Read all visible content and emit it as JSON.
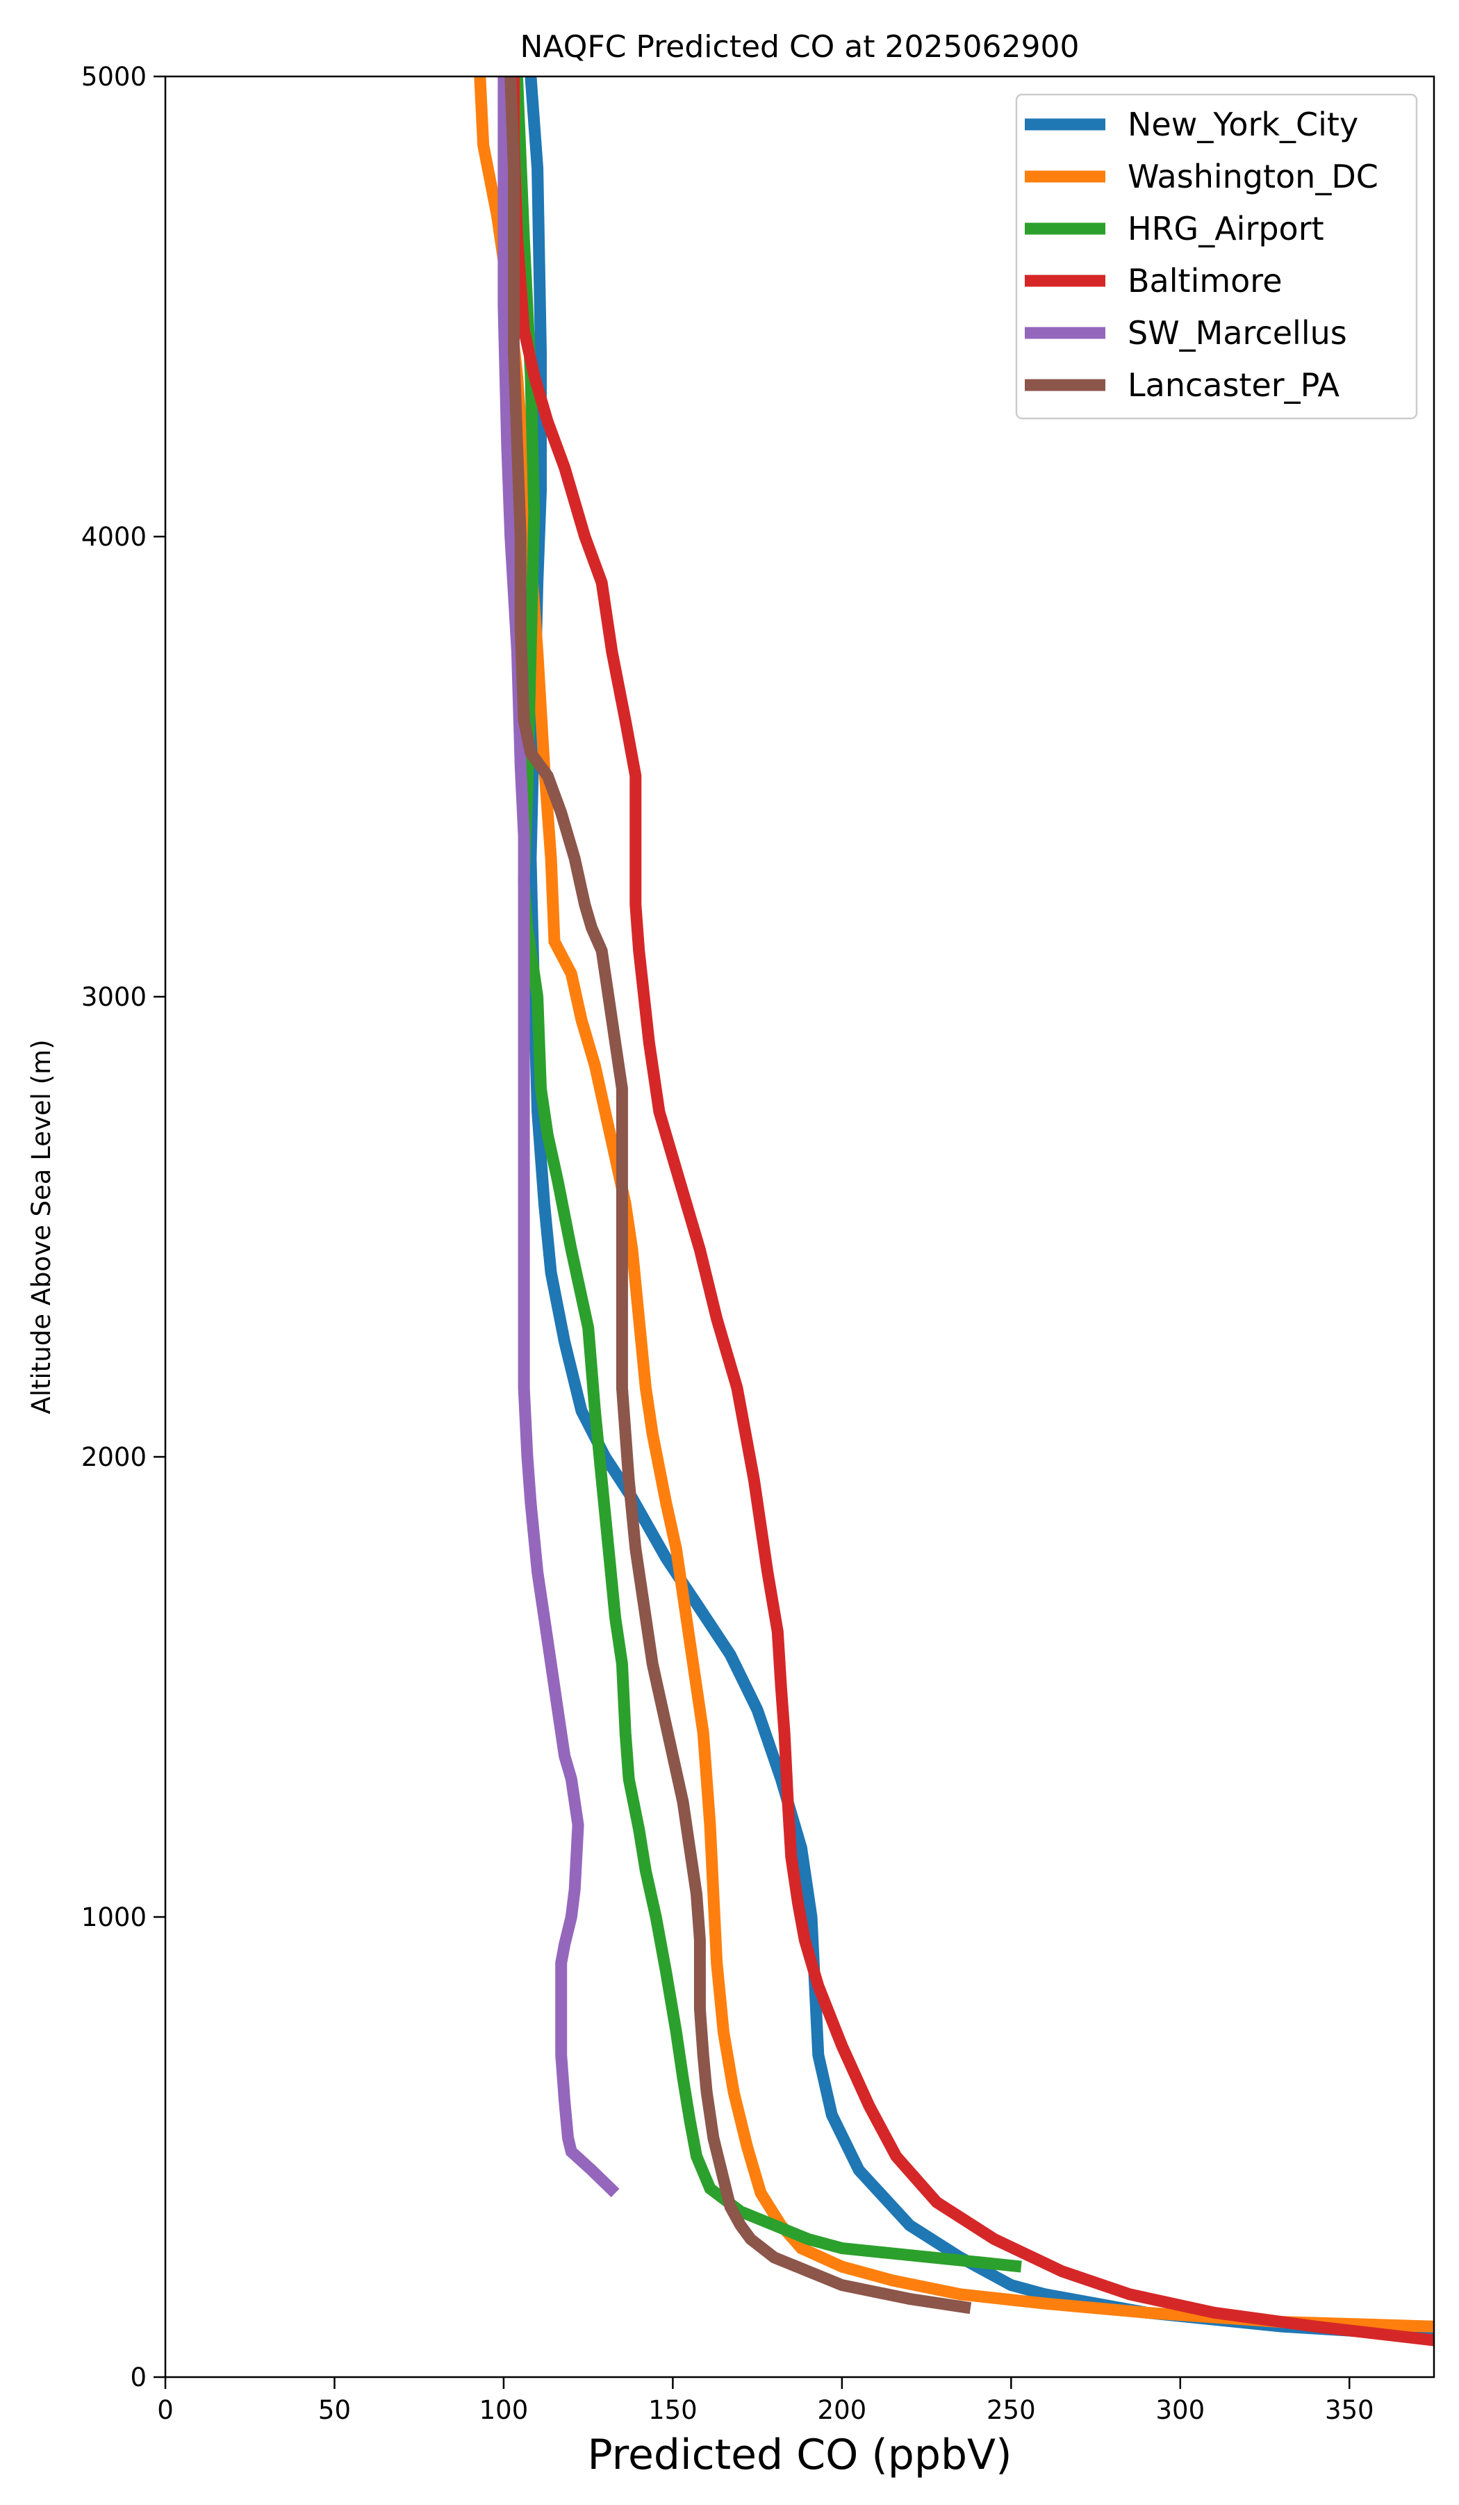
{
  "chart_data": {
    "type": "line",
    "title": "NAQFC Predicted CO at 2025062900",
    "xlabel": "Predicted CO (ppbV)",
    "ylabel": "Altitude Above Sea Level (m)",
    "xlim": [
      0,
      375
    ],
    "ylim": [
      0,
      5000
    ],
    "xticks": [
      0,
      50,
      100,
      150,
      200,
      250,
      300,
      350
    ],
    "yticks": [
      0,
      1000,
      2000,
      3000,
      4000,
      5000
    ],
    "grid": false,
    "legend_position": "top-right",
    "series": [
      {
        "name": "New_York_City",
        "color": "#1f77b4",
        "points": [
          [
            375,
            90
          ],
          [
            330,
            110
          ],
          [
            290,
            140
          ],
          [
            260,
            180
          ],
          [
            250,
            200
          ],
          [
            235,
            260
          ],
          [
            220,
            330
          ],
          [
            205,
            450
          ],
          [
            197,
            570
          ],
          [
            193,
            700
          ],
          [
            192,
            850
          ],
          [
            191,
            1000
          ],
          [
            188,
            1150
          ],
          [
            182,
            1300
          ],
          [
            175,
            1450
          ],
          [
            167,
            1570
          ],
          [
            158,
            1670
          ],
          [
            148,
            1780
          ],
          [
            138,
            1910
          ],
          [
            130,
            2000
          ],
          [
            123,
            2100
          ],
          [
            118,
            2250
          ],
          [
            114,
            2400
          ],
          [
            112,
            2550
          ],
          [
            110,
            2750
          ],
          [
            109,
            3000
          ],
          [
            108,
            3300
          ],
          [
            109,
            3600
          ],
          [
            110,
            3900
          ],
          [
            111,
            4100
          ],
          [
            111,
            4400
          ],
          [
            110,
            4800
          ],
          [
            108,
            5000
          ]
        ]
      },
      {
        "name": "Washington_DC",
        "color": "#ff7f0e",
        "points": [
          [
            375,
            110
          ],
          [
            330,
            120
          ],
          [
            290,
            140
          ],
          [
            260,
            160
          ],
          [
            235,
            180
          ],
          [
            215,
            210
          ],
          [
            200,
            240
          ],
          [
            188,
            280
          ],
          [
            182,
            330
          ],
          [
            176,
            400
          ],
          [
            172,
            500
          ],
          [
            168,
            620
          ],
          [
            165,
            750
          ],
          [
            163,
            900
          ],
          [
            162,
            1050
          ],
          [
            161,
            1200
          ],
          [
            159,
            1400
          ],
          [
            156,
            1550
          ],
          [
            154,
            1650
          ],
          [
            151,
            1800
          ],
          [
            148,
            1900
          ],
          [
            144,
            2050
          ],
          [
            142,
            2150
          ],
          [
            140,
            2300
          ],
          [
            138,
            2450
          ],
          [
            136,
            2550
          ],
          [
            133,
            2650
          ],
          [
            130,
            2750
          ],
          [
            127,
            2850
          ],
          [
            123,
            2950
          ],
          [
            120,
            3050
          ],
          [
            115,
            3120
          ],
          [
            114,
            3300
          ],
          [
            112,
            3500
          ],
          [
            110,
            3750
          ],
          [
            108,
            3950
          ],
          [
            106,
            4150
          ],
          [
            104,
            4350
          ],
          [
            101,
            4550
          ],
          [
            98,
            4700
          ],
          [
            94,
            4850
          ],
          [
            93,
            5000
          ]
        ]
      },
      {
        "name": "HRG_Airport",
        "color": "#2ca02c",
        "points": [
          [
            253,
            240
          ],
          [
            240,
            250
          ],
          [
            220,
            265
          ],
          [
            200,
            280
          ],
          [
            190,
            300
          ],
          [
            180,
            330
          ],
          [
            170,
            360
          ],
          [
            161,
            410
          ],
          [
            157,
            480
          ],
          [
            155,
            560
          ],
          [
            153,
            650
          ],
          [
            151,
            750
          ],
          [
            148,
            880
          ],
          [
            145,
            1000
          ],
          [
            142,
            1100
          ],
          [
            140,
            1190
          ],
          [
            137,
            1300
          ],
          [
            136,
            1400
          ],
          [
            135,
            1550
          ],
          [
            133,
            1650
          ],
          [
            131,
            1800
          ],
          [
            129,
            1950
          ],
          [
            127,
            2100
          ],
          [
            125,
            2280
          ],
          [
            120,
            2450
          ],
          [
            116,
            2600
          ],
          [
            113,
            2700
          ],
          [
            111,
            2800
          ],
          [
            110,
            3000
          ],
          [
            107,
            3150
          ],
          [
            106,
            3250
          ],
          [
            107,
            3450
          ],
          [
            108,
            3750
          ],
          [
            109,
            4050
          ],
          [
            108,
            4350
          ],
          [
            106,
            4650
          ],
          [
            104,
            5000
          ]
        ]
      },
      {
        "name": "Baltimore",
        "color": "#d62728",
        "points": [
          [
            375,
            80
          ],
          [
            340,
            110
          ],
          [
            310,
            140
          ],
          [
            285,
            180
          ],
          [
            265,
            230
          ],
          [
            245,
            300
          ],
          [
            228,
            380
          ],
          [
            216,
            480
          ],
          [
            208,
            590
          ],
          [
            200,
            720
          ],
          [
            193,
            850
          ],
          [
            189,
            950
          ],
          [
            187,
            1030
          ],
          [
            185,
            1130
          ],
          [
            184,
            1250
          ],
          [
            183,
            1400
          ],
          [
            182,
            1500
          ],
          [
            181,
            1620
          ],
          [
            178,
            1750
          ],
          [
            174,
            1950
          ],
          [
            169,
            2150
          ],
          [
            163,
            2300
          ],
          [
            158,
            2450
          ],
          [
            152,
            2600
          ],
          [
            146,
            2750
          ],
          [
            143,
            2900
          ],
          [
            140,
            3100
          ],
          [
            139,
            3200
          ],
          [
            139,
            3350
          ],
          [
            139,
            3480
          ],
          [
            136,
            3600
          ],
          [
            132,
            3750
          ],
          [
            129,
            3900
          ],
          [
            124,
            4000
          ],
          [
            118,
            4150
          ],
          [
            113,
            4250
          ],
          [
            109,
            4350
          ],
          [
            106,
            4450
          ],
          [
            104,
            4650
          ],
          [
            103,
            4850
          ],
          [
            103,
            5000
          ]
        ]
      },
      {
        "name": "SW_Marcellus",
        "color": "#9467bd",
        "points": [
          [
            133,
            400
          ],
          [
            126,
            450
          ],
          [
            120,
            490
          ],
          [
            119,
            520
          ],
          [
            118,
            600
          ],
          [
            117,
            700
          ],
          [
            117,
            800
          ],
          [
            117,
            900
          ],
          [
            118,
            940
          ],
          [
            120,
            1000
          ],
          [
            121,
            1060
          ],
          [
            122,
            1200
          ],
          [
            120,
            1300
          ],
          [
            118,
            1350
          ],
          [
            116,
            1450
          ],
          [
            114,
            1550
          ],
          [
            112,
            1650
          ],
          [
            110,
            1750
          ],
          [
            108,
            1900
          ],
          [
            107,
            2000
          ],
          [
            106,
            2150
          ],
          [
            106,
            2300
          ],
          [
            106,
            2500
          ],
          [
            106,
            2700
          ],
          [
            106,
            2900
          ],
          [
            106,
            3050
          ],
          [
            106,
            3200
          ],
          [
            106,
            3350
          ],
          [
            105,
            3500
          ],
          [
            104,
            3750
          ],
          [
            102,
            4000
          ],
          [
            101,
            4200
          ],
          [
            100,
            4500
          ],
          [
            100,
            4800
          ],
          [
            100,
            5000
          ]
        ]
      },
      {
        "name": "Lancaster_PA",
        "color": "#8c564b",
        "points": [
          [
            238,
            150
          ],
          [
            220,
            170
          ],
          [
            200,
            200
          ],
          [
            190,
            230
          ],
          [
            180,
            260
          ],
          [
            173,
            300
          ],
          [
            170,
            330
          ],
          [
            167,
            370
          ],
          [
            165,
            430
          ],
          [
            162,
            520
          ],
          [
            160,
            620
          ],
          [
            159,
            700
          ],
          [
            158,
            800
          ],
          [
            158,
            950
          ],
          [
            157,
            1050
          ],
          [
            155,
            1150
          ],
          [
            153,
            1250
          ],
          [
            150,
            1350
          ],
          [
            147,
            1450
          ],
          [
            144,
            1550
          ],
          [
            141,
            1700
          ],
          [
            139,
            1800
          ],
          [
            137,
            1950
          ],
          [
            135,
            2150
          ],
          [
            135,
            2300
          ],
          [
            135,
            2450
          ],
          [
            135,
            2650
          ],
          [
            135,
            2800
          ],
          [
            133,
            2900
          ],
          [
            131,
            3000
          ],
          [
            129,
            3100
          ],
          [
            126,
            3150
          ],
          [
            124,
            3200
          ],
          [
            121,
            3300
          ],
          [
            117,
            3400
          ],
          [
            113,
            3480
          ],
          [
            108,
            3530
          ],
          [
            106,
            3600
          ],
          [
            105,
            3800
          ],
          [
            105,
            4000
          ],
          [
            104,
            4200
          ],
          [
            103,
            4400
          ],
          [
            103,
            4600
          ],
          [
            103,
            4800
          ],
          [
            102,
            5000
          ]
        ]
      }
    ]
  }
}
